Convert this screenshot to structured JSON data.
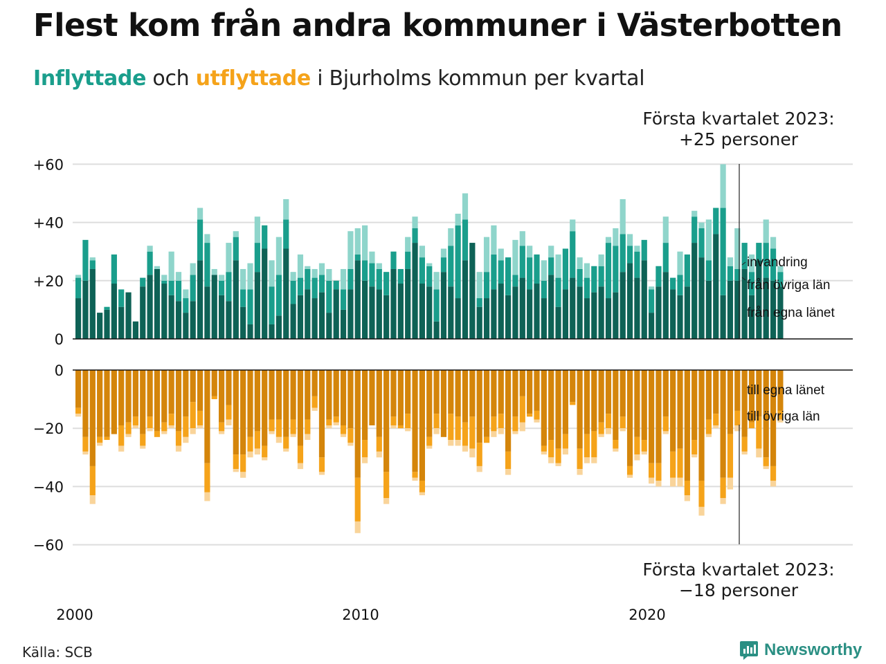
{
  "title": "Flest kom från andra kommuner i Västerbotten",
  "subtitle": {
    "in_word": "Inflyttade",
    "and_word": " och ",
    "out_word": "utflyttade",
    "rest": " i Bjurholms kommun per kvartal"
  },
  "note_top": {
    "line1": "Första kvartalet 2023:",
    "line2": "+25 personer"
  },
  "note_bottom": {
    "line1": "Första kvartalet 2023:",
    "line2": "−18 personer"
  },
  "source": "Källa: SCB",
  "brand": "Newsworthy",
  "colors": {
    "in_own_county": "#0e6256",
    "in_other_counties": "#1a9e8c",
    "in_immigration": "#8fd5cb",
    "out_own_county": "#d4850b",
    "out_other_counties": "#f5a31a",
    "out_emigration": "#f9d49a",
    "grid": "#dddddd",
    "axis": "#111111",
    "brand": "#2a8f83"
  },
  "chart_data": {
    "type": "bar",
    "stacked": true,
    "x_ticks": [
      "2000",
      "2010",
      "2020"
    ],
    "top_panel": {
      "y_ticks": [
        "+60",
        "+40",
        "+20",
        "0"
      ],
      "ylim": [
        0,
        60
      ],
      "series_labels": [
        "invandring",
        "från övriga län",
        "från egna länet"
      ],
      "totals": [
        22,
        34,
        28,
        9,
        11,
        29,
        17,
        16,
        6,
        21,
        32,
        25,
        22,
        30,
        23,
        17,
        26,
        45,
        36,
        24,
        22,
        33,
        37,
        24,
        26,
        42,
        39,
        27,
        35,
        48,
        23,
        29,
        25,
        24,
        26,
        24,
        20,
        24,
        37,
        38,
        39,
        30,
        26,
        23,
        30,
        24,
        35,
        42,
        32,
        26,
        23,
        31,
        38,
        43,
        50,
        30,
        23,
        35,
        39,
        31,
        28,
        34,
        37,
        32,
        29,
        27,
        32,
        29,
        31,
        41,
        28,
        26,
        24,
        29,
        35,
        38,
        48,
        36,
        32,
        34,
        18,
        25,
        42,
        21,
        30,
        29,
        44,
        40,
        41,
        32,
        60,
        28,
        38,
        33,
        29,
        33,
        41,
        35,
        25
      ],
      "own_county": [
        14,
        20,
        24,
        9,
        10,
        19,
        11,
        16,
        6,
        18,
        22,
        24,
        19,
        15,
        13,
        9,
        13,
        27,
        18,
        22,
        15,
        13,
        27,
        11,
        5,
        23,
        31,
        5,
        8,
        31,
        12,
        15,
        17,
        14,
        16,
        9,
        17,
        10,
        17,
        27,
        20,
        18,
        17,
        15,
        24,
        19,
        24,
        33,
        19,
        18,
        6,
        23,
        18,
        14,
        27,
        33,
        11,
        14,
        17,
        19,
        15,
        18,
        21,
        17,
        19,
        14,
        22,
        11,
        17,
        21,
        18,
        14,
        16,
        18,
        14,
        16,
        23,
        26,
        21,
        27,
        9,
        18,
        23,
        17,
        15,
        18,
        33,
        28,
        20,
        36,
        15,
        20,
        20,
        24,
        15,
        27,
        21,
        20,
        18
      ],
      "other_counties": [
        7,
        14,
        3,
        0,
        1,
        10,
        6,
        0,
        0,
        3,
        8,
        0,
        1,
        5,
        7,
        5,
        9,
        14,
        15,
        0,
        5,
        10,
        8,
        6,
        12,
        10,
        8,
        13,
        14,
        10,
        8,
        6,
        7,
        7,
        6,
        11,
        3,
        7,
        7,
        2,
        7,
        8,
        7,
        8,
        6,
        5,
        6,
        5,
        9,
        7,
        11,
        5,
        14,
        25,
        14,
        0,
        3,
        9,
        12,
        8,
        13,
        4,
        11,
        11,
        10,
        6,
        6,
        10,
        14,
        16,
        6,
        7,
        9,
        7,
        19,
        16,
        13,
        6,
        9,
        7,
        8,
        7,
        10,
        4,
        7,
        11,
        9,
        10,
        7,
        9,
        30,
        5,
        4,
        9,
        8,
        6,
        12,
        11,
        5
      ],
      "immigration": [
        1,
        0,
        1,
        0,
        0,
        0,
        0,
        0,
        0,
        0,
        2,
        1,
        2,
        0,
        3,
        1,
        2,
        4,
        3,
        2,
        2,
        2,
        2,
        2,
        9,
        0,
        0,
        9,
        2,
        7,
        3,
        8,
        1,
        3,
        4,
        4,
        0,
        7,
        13,
        9,
        12,
        4,
        2,
        0,
        0,
        0,
        5,
        4,
        4,
        1,
        6,
        3,
        6,
        4,
        9,
        0,
        9,
        12,
        10,
        4,
        0,
        12,
        5,
        4,
        0,
        7,
        4,
        8,
        0,
        4,
        4,
        5,
        0,
        4,
        2,
        6,
        12,
        4,
        2,
        0,
        1,
        0,
        9,
        0,
        8,
        0,
        2,
        2,
        14,
        0,
        15,
        3,
        14,
        0,
        6,
        0,
        8,
        4,
        2
      ]
    },
    "bottom_panel": {
      "y_ticks": [
        "0",
        "−20",
        "−40",
        "−60"
      ],
      "ylim": [
        -60,
        0
      ],
      "series_labels": [
        "till egna länet",
        "till övriga län"
      ],
      "totals": [
        -16,
        -29,
        -46,
        -26,
        -24,
        -22,
        -28,
        -23,
        -20,
        -27,
        -21,
        -23,
        -22,
        -20,
        -28,
        -25,
        -22,
        -20,
        -45,
        -10,
        -22,
        -19,
        -35,
        -37,
        -30,
        -29,
        -31,
        -22,
        -25,
        -28,
        -23,
        -34,
        -24,
        -14,
        -36,
        -20,
        -19,
        -23,
        -26,
        -56,
        -32,
        -19,
        -30,
        -46,
        -20,
        -20,
        -21,
        -38,
        -43,
        -27,
        -22,
        -23,
        -26,
        -26,
        -28,
        -30,
        -35,
        -25,
        -23,
        -22,
        -36,
        -22,
        -21,
        -16,
        -18,
        -29,
        -32,
        -33,
        -29,
        -12,
        -36,
        -32,
        -32,
        -23,
        -22,
        -28,
        -21,
        -37,
        -31,
        -29,
        -39,
        -40,
        -22,
        -40,
        -40,
        -45,
        -30,
        -50,
        -23,
        -20,
        -46,
        -41,
        -21,
        -29,
        -20,
        -30,
        -34,
        -40,
        -18
      ],
      "own_county": [
        -13,
        -23,
        -33,
        -23,
        -23,
        -22,
        -19,
        -18,
        -16,
        -22,
        -16,
        -21,
        -18,
        -15,
        -21,
        -16,
        -11,
        -14,
        -32,
        -9,
        -18,
        -12,
        -29,
        -29,
        -23,
        -21,
        -26,
        -17,
        -17,
        -23,
        -17,
        -26,
        -17,
        -9,
        -30,
        -17,
        -16,
        -19,
        -20,
        -37,
        -24,
        -19,
        -23,
        -35,
        -16,
        -19,
        -15,
        -35,
        -38,
        -23,
        -15,
        -23,
        -15,
        -16,
        -18,
        -16,
        -25,
        -23,
        -16,
        -15,
        -28,
        -16,
        -9,
        -15,
        -14,
        -26,
        -24,
        -27,
        -22,
        -11,
        -27,
        -22,
        -21,
        -18,
        -15,
        -24,
        -16,
        -33,
        -23,
        -24,
        -32,
        -32,
        -16,
        -28,
        -27,
        -38,
        -24,
        -38,
        -17,
        -15,
        -37,
        -22,
        -14,
        -23,
        -18,
        -16,
        -30,
        -33,
        -14
      ]
    }
  }
}
